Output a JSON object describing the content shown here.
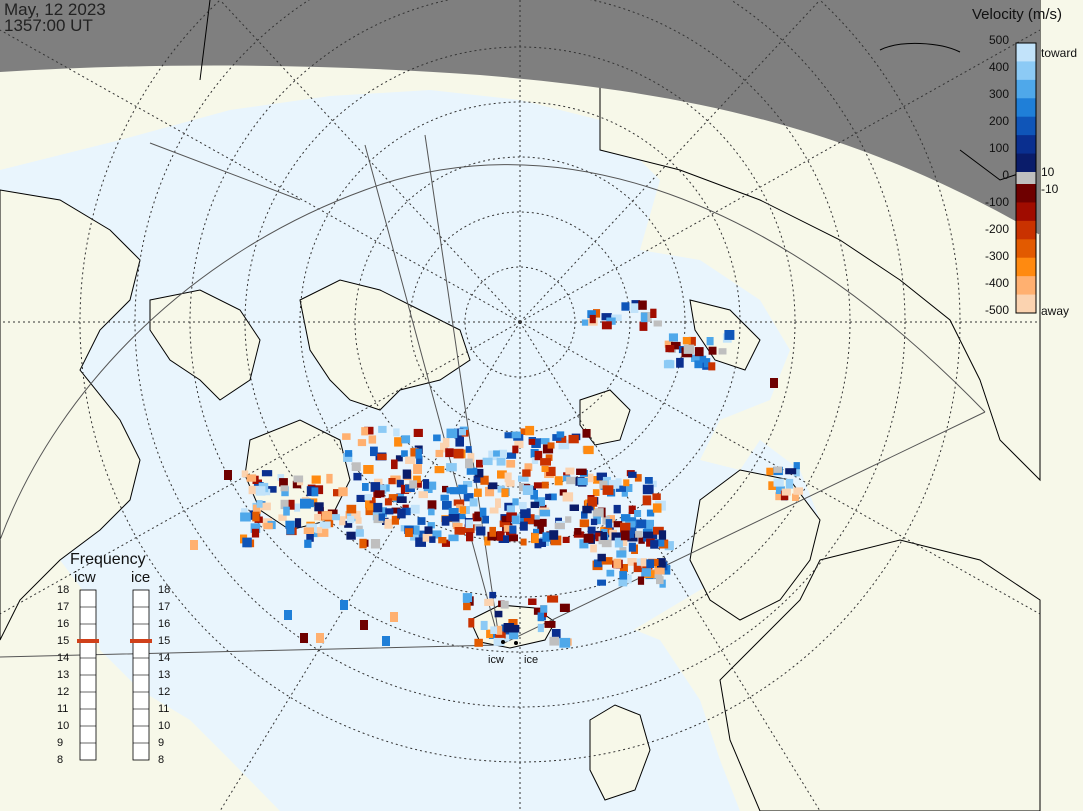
{
  "header": {
    "date": "May, 12 2023",
    "time": "1357:00 UT"
  },
  "colorbar": {
    "title": "Velocity (m/s)",
    "positive_labels": [
      "500",
      "400",
      "300",
      "200",
      "100",
      "0"
    ],
    "negative_labels": [
      "-100",
      "-200",
      "-300",
      "-400",
      "-500"
    ],
    "threshold_pos": "10",
    "threshold_neg": "-10",
    "toward_label": "toward",
    "away_label": "away",
    "toward_colors": [
      "#c2e3fa",
      "#8ccaf5",
      "#4fa8ea",
      "#1f7fd8",
      "#0f55b8",
      "#0a2f8f",
      "#0a1c6a"
    ],
    "away_colors": [
      "#6e0000",
      "#a00c00",
      "#c93200",
      "#e25a00",
      "#ff8a10",
      "#ffb070",
      "#fbd3b0"
    ]
  },
  "frequency": {
    "title": "Frequency",
    "radars": [
      {
        "name": "icw",
        "selected_mhz": 15
      },
      {
        "name": "ice",
        "selected_mhz": 15
      }
    ],
    "scale_mhz": [
      "18",
      "17",
      "16",
      "15",
      "14",
      "13",
      "12",
      "11",
      "10",
      "9",
      "8"
    ]
  },
  "sites": [
    "icw",
    "ice"
  ],
  "map": {
    "ocean_color": "#e9f5fd",
    "land_color": "#f7f8e9",
    "night_color": "#7f7f7f",
    "coast_color": "#000000"
  }
}
